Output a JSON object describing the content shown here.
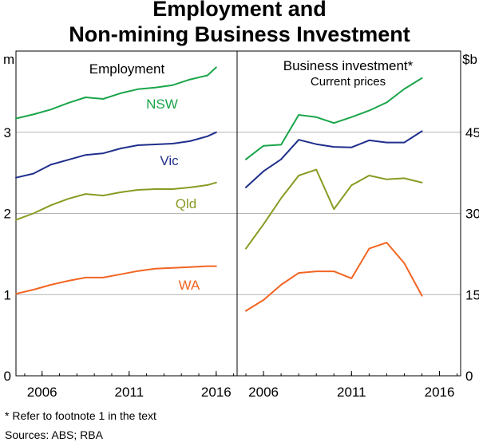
{
  "title_line1": "Employment and",
  "title_line2": "Non-mining Business Investment",
  "footnote": "*      Refer to footnote 1 in the text",
  "sources": "Sources:   ABS; RBA",
  "chart_data": [
    {
      "type": "line",
      "title": "Employment",
      "ylabel": "m",
      "ylim": [
        0,
        4
      ],
      "yticks": [
        "0",
        "1",
        "2",
        "3"
      ],
      "xticks": [
        "2006",
        "2011",
        "2016"
      ],
      "xrange": [
        2004.5,
        2017.2
      ],
      "grid": true,
      "series": [
        {
          "name": "NSW",
          "color": "#1aa54a",
          "x": [
            2004.5,
            2005.5,
            2006.5,
            2007.5,
            2008.5,
            2009.5,
            2010.5,
            2011.5,
            2012.5,
            2013.5,
            2014.5,
            2015.5,
            2016.0
          ],
          "y": [
            3.17,
            3.22,
            3.28,
            3.36,
            3.43,
            3.41,
            3.48,
            3.53,
            3.55,
            3.58,
            3.65,
            3.7,
            3.8
          ]
        },
        {
          "name": "Vic",
          "color": "#1f2f8c",
          "x": [
            2004.5,
            2005.5,
            2006.5,
            2007.5,
            2008.5,
            2009.5,
            2010.5,
            2011.5,
            2012.5,
            2013.5,
            2014.5,
            2015.5,
            2016.0
          ],
          "y": [
            2.44,
            2.49,
            2.6,
            2.66,
            2.72,
            2.74,
            2.8,
            2.84,
            2.85,
            2.86,
            2.89,
            2.95,
            3.0
          ]
        },
        {
          "name": "Qld",
          "color": "#8a9a22",
          "x": [
            2004.5,
            2005.5,
            2006.5,
            2007.5,
            2008.5,
            2009.5,
            2010.5,
            2011.5,
            2012.5,
            2013.5,
            2014.5,
            2015.5,
            2016.0
          ],
          "y": [
            1.92,
            2.0,
            2.1,
            2.18,
            2.24,
            2.22,
            2.26,
            2.29,
            2.3,
            2.3,
            2.32,
            2.35,
            2.38
          ]
        },
        {
          "name": "WA",
          "color": "#f26522",
          "x": [
            2004.5,
            2005.5,
            2006.5,
            2007.5,
            2008.5,
            2009.5,
            2010.5,
            2011.5,
            2012.5,
            2013.5,
            2014.5,
            2015.5,
            2016.0
          ],
          "y": [
            1.01,
            1.06,
            1.12,
            1.17,
            1.21,
            1.21,
            1.25,
            1.29,
            1.32,
            1.33,
            1.34,
            1.35,
            1.35
          ]
        }
      ]
    },
    {
      "type": "line",
      "title": "Business investment*",
      "subtitle": "Current prices",
      "ylabel": "$b",
      "ylim": [
        0,
        60
      ],
      "yticks": [
        "0",
        "15",
        "30",
        "45"
      ],
      "xticks": [
        "2006",
        "2011",
        "2016"
      ],
      "xrange": [
        2004.5,
        2017.2
      ],
      "grid": true,
      "series": [
        {
          "name": "NSW",
          "color": "#1aa54a",
          "x": [
            2005,
            2006,
            2007,
            2008,
            2009,
            2010,
            2011,
            2012,
            2013,
            2014,
            2015
          ],
          "y": [
            40.0,
            42.5,
            42.7,
            48.2,
            47.8,
            46.7,
            47.8,
            49.0,
            50.5,
            53.0,
            55.0
          ]
        },
        {
          "name": "Vic",
          "color": "#1f2f8c",
          "x": [
            2005,
            2006,
            2007,
            2008,
            2009,
            2010,
            2011,
            2012,
            2013,
            2014,
            2015
          ],
          "y": [
            34.8,
            37.8,
            40.0,
            43.6,
            42.8,
            42.3,
            42.2,
            43.5,
            43.1,
            43.1,
            45.2
          ]
        },
        {
          "name": "Qld",
          "color": "#8a9a22",
          "x": [
            2005,
            2006,
            2007,
            2008,
            2009,
            2010,
            2011,
            2012,
            2013,
            2014,
            2015
          ],
          "y": [
            23.5,
            28.0,
            32.8,
            37.0,
            38.1,
            30.8,
            35.2,
            37.0,
            36.3,
            36.5,
            35.7
          ]
        },
        {
          "name": "WA",
          "color": "#f26522",
          "x": [
            2005,
            2006,
            2007,
            2008,
            2009,
            2010,
            2011,
            2012,
            2013,
            2014,
            2015
          ],
          "y": [
            12.0,
            14.0,
            16.8,
            19.0,
            19.3,
            19.3,
            18.0,
            23.5,
            24.6,
            20.8,
            14.8
          ]
        }
      ]
    }
  ]
}
